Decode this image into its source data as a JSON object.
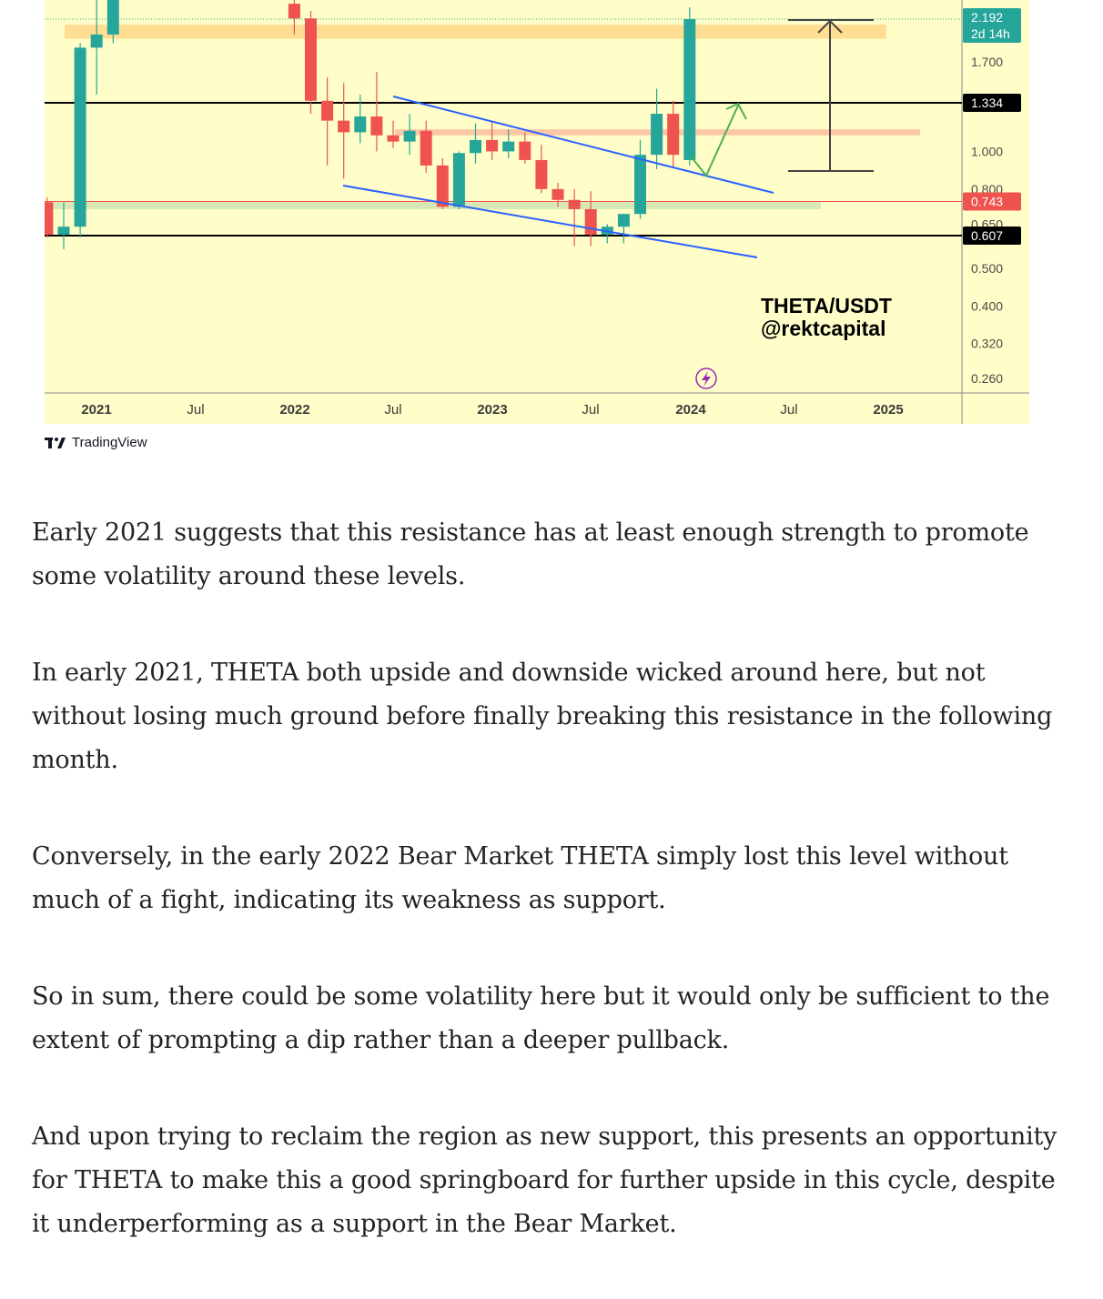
{
  "chart_data": {
    "type": "candlestick",
    "pair_label": "THETA/USDT",
    "author_label": "@rektcapital",
    "x_ticks": [
      {
        "label": "2021",
        "bold": true
      },
      {
        "label": "Jul",
        "bold": false
      },
      {
        "label": "2022",
        "bold": true
      },
      {
        "label": "Jul",
        "bold": false
      },
      {
        "label": "2023",
        "bold": true
      },
      {
        "label": "Jul",
        "bold": false
      },
      {
        "label": "2024",
        "bold": true
      },
      {
        "label": "Jul",
        "bold": false
      },
      {
        "label": "2025",
        "bold": true
      }
    ],
    "y_ticks": [
      1.7,
      1.0,
      0.8,
      0.65,
      0.5,
      0.4,
      0.32,
      0.26
    ],
    "y_tick_labels": [
      "1.700",
      "1.000",
      "0.800",
      "0.650",
      "0.500",
      "0.400",
      "0.320",
      "0.260"
    ],
    "price_tags": [
      {
        "label": "2.192",
        "sub": "2d 14h",
        "color": "#26a69a",
        "value": 2.192
      },
      {
        "label": "1.334",
        "color": "#000000",
        "value": 1.334
      },
      {
        "label": "0.743",
        "color": "#ef5350",
        "value": 0.743
      },
      {
        "label": "0.607",
        "color": "#000000",
        "value": 0.607
      }
    ],
    "horizontal_levels": [
      1.334,
      0.607,
      0.743
    ],
    "zones": [
      {
        "name": "resistance",
        "color": "#ffd98c",
        "low": 1.95,
        "high": 2.12
      },
      {
        "name": "mid",
        "color": "#fcc1a3",
        "low": 1.1,
        "high": 1.14
      },
      {
        "name": "support",
        "color": "#d2e6b4",
        "low": 0.71,
        "high": 0.74
      }
    ],
    "candles": [
      {
        "date": "2020-12",
        "o": 0.74,
        "h": 0.76,
        "l": 0.6,
        "c": 0.61
      },
      {
        "date": "2021-01",
        "o": 0.61,
        "h": 0.74,
        "l": 0.56,
        "c": 0.64
      },
      {
        "date": "2021-02",
        "o": 0.64,
        "h": 1.9,
        "l": 0.6,
        "c": 1.85
      },
      {
        "date": "2021-03",
        "o": 1.85,
        "h": 2.6,
        "l": 1.4,
        "c": 2.0
      },
      {
        "date": "2021-04",
        "o": 2.0,
        "h": 2.6,
        "l": 1.9,
        "c": 2.5
      },
      {
        "date": "2022-03",
        "o": 2.4,
        "h": 2.9,
        "l": 2.0,
        "c": 2.2
      },
      {
        "date": "2022-04",
        "o": 2.2,
        "h": 2.3,
        "l": 1.25,
        "c": 1.35
      },
      {
        "date": "2022-05",
        "o": 1.35,
        "h": 1.55,
        "l": 0.92,
        "c": 1.2
      },
      {
        "date": "2022-06",
        "o": 1.2,
        "h": 1.5,
        "l": 0.85,
        "c": 1.12
      },
      {
        "date": "2022-07",
        "o": 1.12,
        "h": 1.4,
        "l": 1.05,
        "c": 1.23
      },
      {
        "date": "2022-08",
        "o": 1.23,
        "h": 1.6,
        "l": 1.0,
        "c": 1.1
      },
      {
        "date": "2022-09",
        "o": 1.1,
        "h": 1.2,
        "l": 1.02,
        "c": 1.06
      },
      {
        "date": "2022-10",
        "o": 1.06,
        "h": 1.25,
        "l": 0.98,
        "c": 1.13
      },
      {
        "date": "2022-11",
        "o": 1.13,
        "h": 1.2,
        "l": 0.88,
        "c": 0.92
      },
      {
        "date": "2022-12",
        "o": 0.92,
        "h": 0.96,
        "l": 0.71,
        "c": 0.72
      },
      {
        "date": "2023-01",
        "o": 0.72,
        "h": 1.0,
        "l": 0.71,
        "c": 0.99
      },
      {
        "date": "2023-02",
        "o": 0.99,
        "h": 1.18,
        "l": 0.93,
        "c": 1.07
      },
      {
        "date": "2023-03",
        "o": 1.07,
        "h": 1.2,
        "l": 0.95,
        "c": 1.0
      },
      {
        "date": "2023-04",
        "o": 1.0,
        "h": 1.14,
        "l": 0.96,
        "c": 1.06
      },
      {
        "date": "2023-05",
        "o": 1.06,
        "h": 1.12,
        "l": 0.93,
        "c": 0.95
      },
      {
        "date": "2023-06",
        "o": 0.95,
        "h": 1.04,
        "l": 0.78,
        "c": 0.8
      },
      {
        "date": "2023-07",
        "o": 0.8,
        "h": 0.83,
        "l": 0.72,
        "c": 0.75
      },
      {
        "date": "2023-08",
        "o": 0.75,
        "h": 0.8,
        "l": 0.57,
        "c": 0.71
      },
      {
        "date": "2023-09",
        "o": 0.71,
        "h": 0.79,
        "l": 0.57,
        "c": 0.61
      },
      {
        "date": "2023-10",
        "o": 0.61,
        "h": 0.65,
        "l": 0.58,
        "c": 0.64
      },
      {
        "date": "2023-11",
        "o": 0.64,
        "h": 0.69,
        "l": 0.58,
        "c": 0.69
      },
      {
        "date": "2023-12",
        "o": 0.69,
        "h": 1.07,
        "l": 0.67,
        "c": 0.98
      },
      {
        "date": "2024-01",
        "o": 0.98,
        "h": 1.45,
        "l": 0.9,
        "c": 1.25
      },
      {
        "date": "2024-02",
        "o": 1.25,
        "h": 1.35,
        "l": 0.91,
        "c": 0.98
      },
      {
        "date": "2024-03",
        "o": 0.95,
        "h": 2.35,
        "l": 0.92,
        "c": 2.192
      }
    ]
  },
  "brand": {
    "name": "TradingView"
  },
  "article": {
    "paragraphs": [
      "Early 2021 suggests that this resistance has at least enough strength to promote some volatility around these levels.",
      "In early 2021, THETA both upside and downside wicked around here, but not without losing much ground before finally breaking this resistance in the following month.",
      "Conversely, in the early 2022 Bear Market THETA simply lost this level without much of a fight, indicating its weakness as support.",
      "So in sum, there could be some volatility here but it would only be sufficient to the extent of prompting a dip rather than a deeper pullback.",
      "And upon trying to reclaim the region as new support, this presents an opportunity for THETA to make this a good springboard for further upside in this cycle, despite it underperforming as a support in the Bear Market."
    ]
  },
  "colors": {
    "chart_bg": "#fffdc8",
    "up": "#26a69a",
    "down": "#ef5350",
    "trendline": "#2962ff",
    "arrow_green": "#4caf50"
  }
}
